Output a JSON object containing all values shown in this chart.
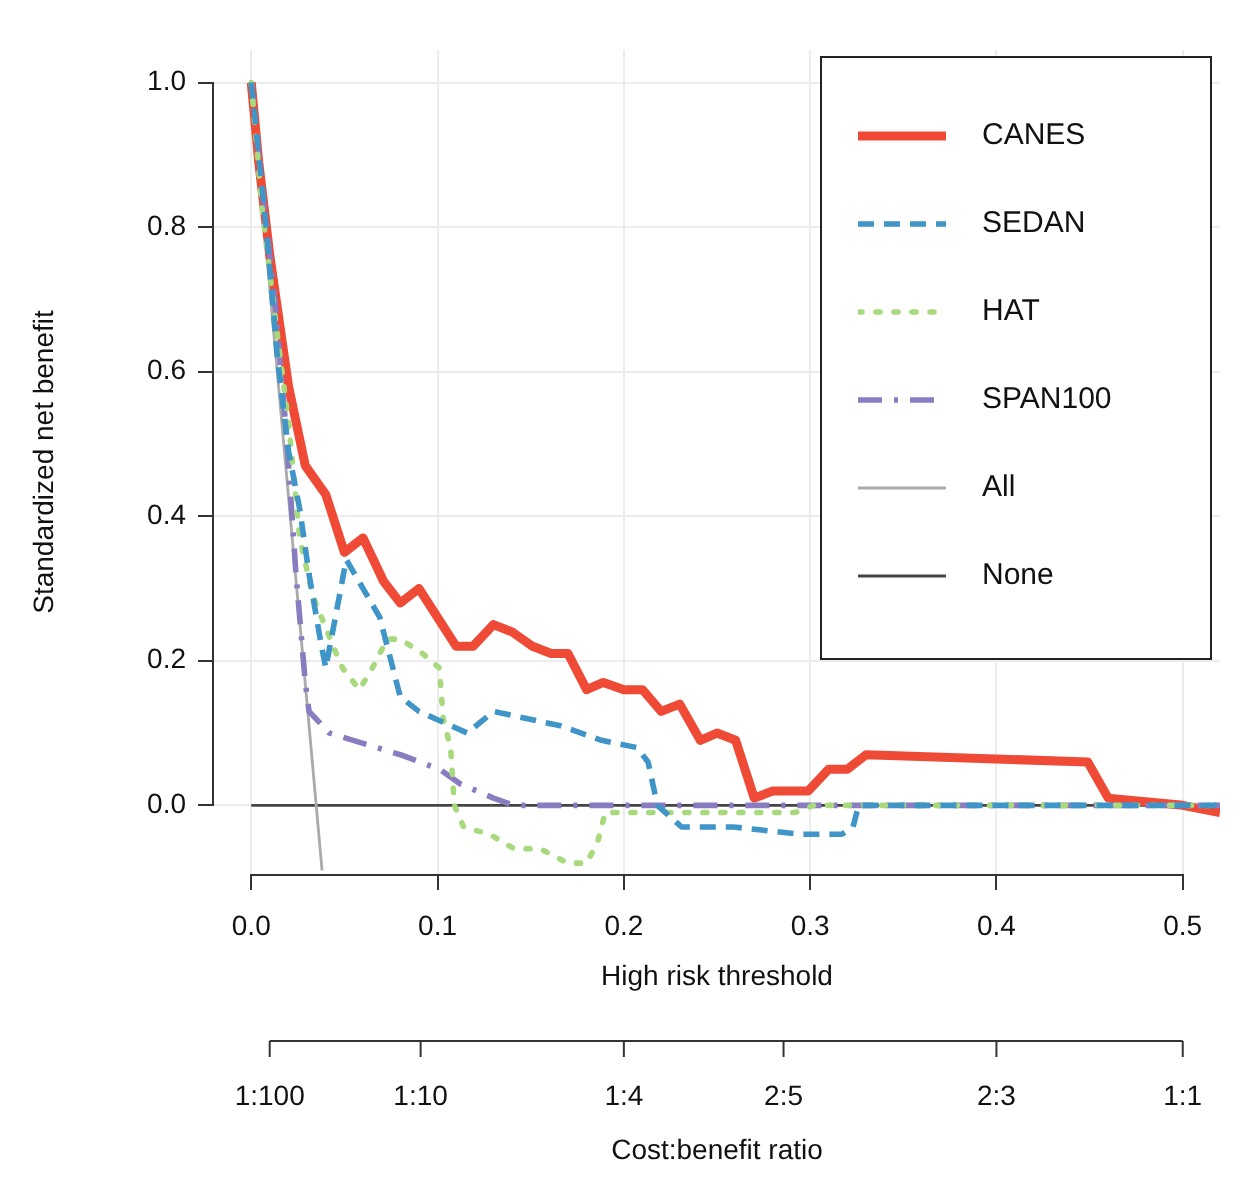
{
  "chart_data": {
    "type": "line",
    "xlabel": "High risk threshold",
    "ylabel": "Standardized net benefit",
    "xlim": [
      -0.02,
      0.52
    ],
    "xticks": [
      {
        "value": 0,
        "label": "0.0"
      },
      0.1,
      0.2,
      0.3,
      0.4,
      0.5
    ],
    "ylim": [
      -0.095,
      1.045
    ],
    "yticks": [
      {
        "value": 0,
        "label": "0.0"
      },
      0.2,
      0.4,
      0.6,
      0.8,
      {
        "value": 1,
        "label": "1.0"
      }
    ],
    "annotations": [
      "1:100",
      "1:10",
      "1:4",
      "2:5",
      "2:3",
      "1:1",
      "Cost:benefit ratio"
    ],
    "grid": true,
    "legend": "top right",
    "marker": "none",
    "series": [
      {
        "name": "CANES",
        "color": "#ee4a36",
        "line_style": "solid",
        "x": [
          0,
          0.004,
          0.01,
          0.02,
          0.029,
          0.04,
          0.05,
          0.06,
          0.071,
          0.08,
          0.09,
          0.11,
          0.119,
          0.13,
          0.14,
          0.151,
          0.161,
          0.17,
          0.18,
          0.189,
          0.2,
          0.21,
          0.22,
          0.23,
          0.241,
          0.25,
          0.26,
          0.27,
          0.28,
          0.299,
          0.31,
          0.32,
          0.33,
          0.449,
          0.46,
          0.5,
          0.52
        ],
        "values": [
          1,
          0.89,
          0.76,
          0.58,
          0.47,
          0.43,
          0.35,
          0.37,
          0.31,
          0.28,
          0.3,
          0.22,
          0.22,
          0.25,
          0.24,
          0.22,
          0.21,
          0.21,
          0.16,
          0.17,
          0.16,
          0.16,
          0.13,
          0.14,
          0.09,
          0.1,
          0.09,
          0.01,
          0.02,
          0.02,
          0.05,
          0.05,
          0.07,
          0.06,
          0.01,
          0,
          -0.01
        ]
      },
      {
        "name": "SEDAN",
        "color": "#3f94c8",
        "line_style": "dashed",
        "x": [
          0,
          0.008,
          0.014,
          0.02,
          0.026,
          0.031,
          0.037,
          0.04,
          0.051,
          0.069,
          0.08,
          0.09,
          0.116,
          0.13,
          0.166,
          0.188,
          0.207,
          0.213,
          0.218,
          0.231,
          0.259,
          0.295,
          0.317,
          0.323,
          0.326,
          0.52
        ],
        "values": [
          1,
          0.8,
          0.62,
          0.49,
          0.41,
          0.32,
          0.23,
          0.19,
          0.34,
          0.26,
          0.15,
          0.13,
          0.1,
          0.13,
          0.11,
          0.09,
          0.08,
          0.06,
          0,
          -0.03,
          -0.03,
          -0.04,
          -0.04,
          -0.03,
          0,
          0
        ]
      },
      {
        "name": "HAT",
        "color": "#a8d97c",
        "line_style": "dotted",
        "x": [
          0,
          0.006,
          0.015,
          0.02,
          0.026,
          0.033,
          0.044,
          0.049,
          0.058,
          0.065,
          0.073,
          0.08,
          0.092,
          0.101,
          0.103,
          0.107,
          0.109,
          0.114,
          0.128,
          0.141,
          0.155,
          0.17,
          0.18,
          0.186,
          0.19,
          0.205,
          0.22,
          0.292,
          0.302,
          0.52
        ],
        "values": [
          1,
          0.82,
          0.63,
          0.53,
          0.37,
          0.29,
          0.22,
          0.19,
          0.16,
          0.19,
          0.23,
          0.23,
          0.21,
          0.19,
          0.12,
          0.08,
          0,
          -0.03,
          -0.04,
          -0.06,
          -0.06,
          -0.08,
          -0.08,
          -0.05,
          -0.01,
          -0.01,
          -0.01,
          -0.01,
          0,
          0
        ]
      },
      {
        "name": "SPAN100",
        "color": "#8a7cc0",
        "line_style": "dashdot",
        "x": [
          0,
          0.006,
          0.013,
          0.019,
          0.024,
          0.029,
          0.031,
          0.042,
          0.08,
          0.101,
          0.112,
          0.13,
          0.141,
          0.52
        ],
        "values": [
          1,
          0.85,
          0.69,
          0.51,
          0.32,
          0.17,
          0.13,
          0.1,
          0.07,
          0.05,
          0.03,
          0.01,
          0,
          0
        ]
      },
      {
        "name": "All",
        "color": "#aaaaaa",
        "line_style": "solid",
        "x": [
          0,
          0.038
        ],
        "values": [
          1,
          -0.09
        ]
      },
      {
        "name": "None",
        "color": "#444444",
        "line_style": "solid",
        "x": [
          0,
          0.52
        ],
        "values": [
          0,
          0
        ]
      }
    ]
  }
}
